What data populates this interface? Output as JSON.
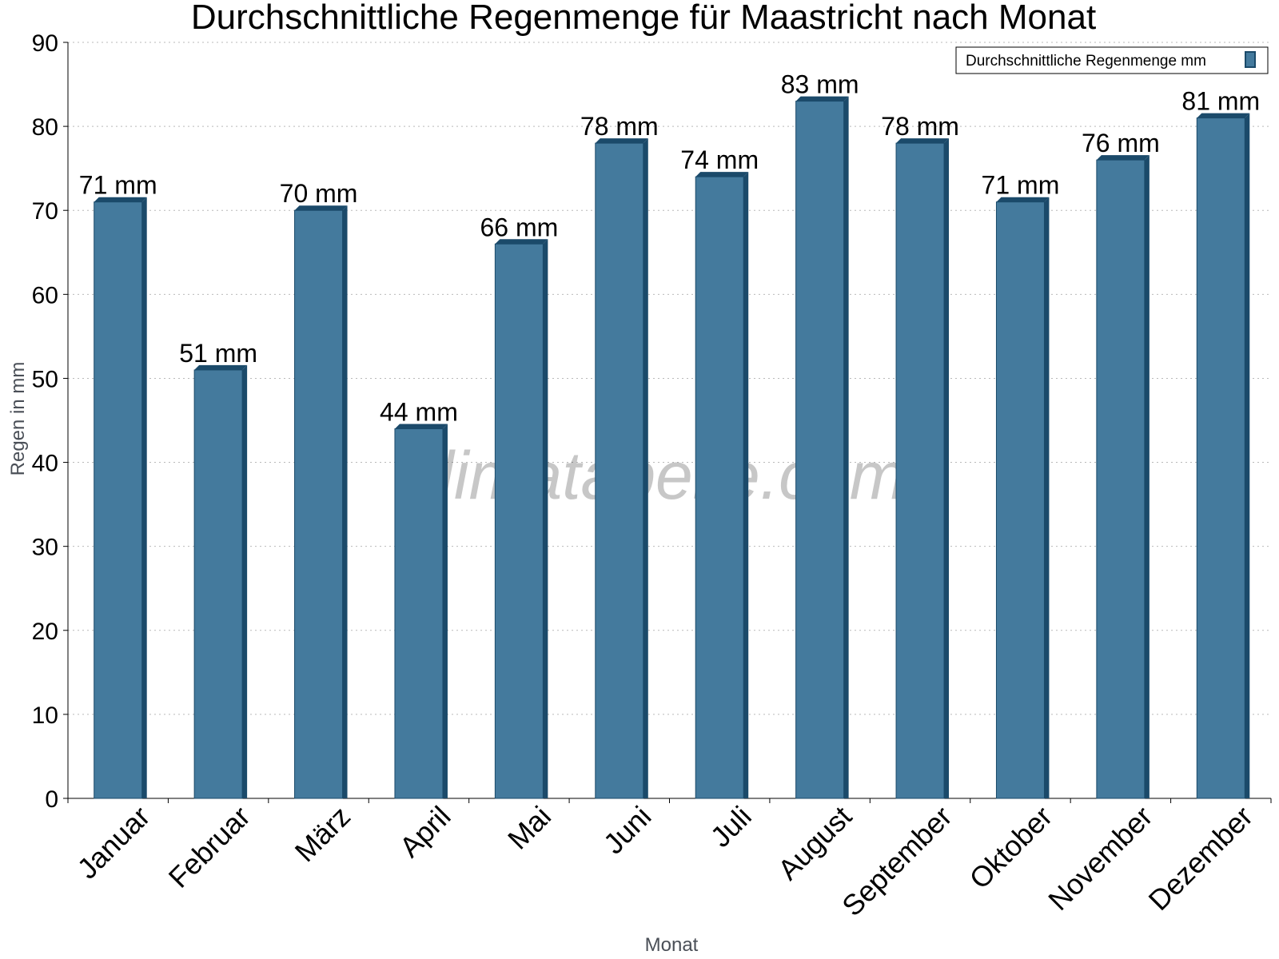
{
  "chart_data": {
    "type": "bar",
    "title": "Durchschnittliche Regenmenge für Maastricht nach Monat",
    "xlabel": "Monat",
    "ylabel": "Regen in mm",
    "ylim": [
      0,
      90
    ],
    "yticks": [
      0,
      10,
      20,
      30,
      40,
      50,
      60,
      70,
      80,
      90
    ],
    "grid": true,
    "legend_position": "top-right",
    "categories": [
      "Januar",
      "Februar",
      "März",
      "April",
      "Mai",
      "Juni",
      "Juli",
      "August",
      "September",
      "Oktober",
      "November",
      "Dezember"
    ],
    "series": [
      {
        "name": "Durchschnittliche Regenmenge mm",
        "values": [
          71,
          51,
          70,
          44,
          66,
          78,
          74,
          83,
          78,
          71,
          76,
          81
        ],
        "labels": [
          "71 mm",
          "51 mm",
          "70 mm",
          "44 mm",
          "66 mm",
          "78 mm",
          "74 mm",
          "83 mm",
          "78 mm",
          "71 mm",
          "76 mm",
          "81 mm"
        ],
        "color": "#447a9d",
        "side_color": "#1b4a6a"
      }
    ],
    "watermark": "klimatabelle.com"
  }
}
